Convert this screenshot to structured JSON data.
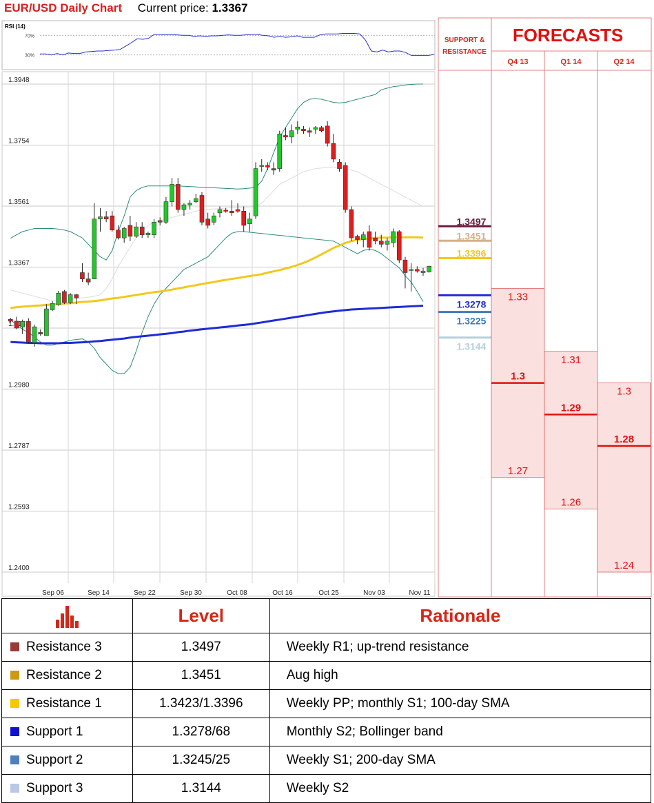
{
  "header": {
    "title": "EUR/USD Daily Chart",
    "price_label": "Current price:",
    "price_value": "1.3367"
  },
  "rsi": {
    "label": "RSI (14)",
    "levels": [
      "70%",
      "30%"
    ],
    "ylim": [
      0,
      100
    ],
    "values": [
      32,
      32,
      30,
      33,
      30,
      34,
      33,
      33,
      36,
      37,
      38,
      38,
      39,
      40,
      41,
      48,
      55,
      63,
      62,
      64,
      72,
      72,
      71,
      72,
      71,
      70,
      70,
      68,
      69,
      68,
      69,
      69,
      70,
      71,
      70,
      70,
      71,
      72,
      72,
      70,
      69,
      66,
      68,
      66,
      67,
      69,
      66,
      66,
      66,
      71,
      73,
      73,
      73,
      74,
      74,
      74,
      73,
      60,
      38,
      36,
      40,
      36,
      38,
      38,
      35,
      29,
      29,
      29,
      29,
      31
    ]
  },
  "colors": {
    "sma100": "#f2c81c",
    "sma200": "#1f2bd6",
    "candle_up": "#22c82a",
    "candle_down": "#de1e1e",
    "forecast_red": "#e01010",
    "forecast_fill": "#fbe0e0"
  },
  "chart_data": {
    "type": "candlestick",
    "title": "EUR/USD Daily Chart",
    "ylim": [
      1.24,
      1.3948
    ],
    "yticks": [
      "1.3948",
      "1.3754",
      "1.3561",
      "1.3367",
      "1.3174",
      "1.2980",
      "1.2787",
      "1.2593",
      "1.2400"
    ],
    "xticks": [
      "Sep 06",
      "Sep 14",
      "Sep 22",
      "Sep 30",
      "Oct 08",
      "Oct 16",
      "Oct 25",
      "Nov 03",
      "Nov 11"
    ],
    "candles": [
      [
        1.3202,
        1.3206,
        1.3191,
        1.3196
      ],
      [
        1.3196,
        1.321,
        1.317,
        1.3174
      ],
      [
        1.3178,
        1.3201,
        1.3155,
        1.3195
      ],
      [
        1.3195,
        1.3205,
        1.3125,
        1.313
      ],
      [
        1.3128,
        1.3185,
        1.3115,
        1.3178
      ],
      [
        1.316,
        1.317,
        1.315,
        1.3155
      ],
      [
        1.315,
        1.325,
        1.315,
        1.3235
      ],
      [
        1.3232,
        1.326,
        1.3228,
        1.3252
      ],
      [
        1.3248,
        1.3292,
        1.3245,
        1.3285
      ],
      [
        1.329,
        1.3295,
        1.325,
        1.3255
      ],
      [
        1.3255,
        1.3285,
        1.325,
        1.328
      ],
      [
        1.328,
        1.3282,
        1.325,
        1.327
      ],
      [
        1.335,
        1.338,
        1.332,
        1.333
      ],
      [
        1.333,
        1.335,
        1.331,
        1.332
      ],
      [
        1.333,
        1.357,
        1.333,
        1.352
      ],
      [
        1.352,
        1.3555,
        1.348,
        1.3527
      ],
      [
        1.3527,
        1.3545,
        1.351,
        1.352
      ],
      [
        1.353,
        1.3545,
        1.348,
        1.3485
      ],
      [
        1.3485,
        1.35,
        1.3455,
        1.346
      ],
      [
        1.346,
        1.3495,
        1.3445,
        1.349
      ],
      [
        1.35,
        1.353,
        1.345,
        1.3465
      ],
      [
        1.3465,
        1.351,
        1.346,
        1.3495
      ],
      [
        1.3495,
        1.351,
        1.346,
        1.347
      ],
      [
        1.347,
        1.348,
        1.346,
        1.3475
      ],
      [
        1.347,
        1.352,
        1.346,
        1.351
      ],
      [
        1.3515,
        1.3525,
        1.35,
        1.351
      ],
      [
        1.351,
        1.359,
        1.3505,
        1.3575
      ],
      [
        1.3575,
        1.365,
        1.356,
        1.363
      ],
      [
        1.363,
        1.365,
        1.354,
        1.355
      ],
      [
        1.355,
        1.357,
        1.353,
        1.3565
      ],
      [
        1.3565,
        1.358,
        1.355,
        1.357
      ],
      [
        1.3575,
        1.36,
        1.357,
        1.3585
      ],
      [
        1.3595,
        1.3605,
        1.35,
        1.351
      ],
      [
        1.352,
        1.354,
        1.349,
        1.35
      ],
      [
        1.351,
        1.354,
        1.35,
        1.353
      ],
      [
        1.354,
        1.356,
        1.3525,
        1.355
      ],
      [
        1.3548,
        1.3555,
        1.354,
        1.3545
      ],
      [
        1.3545,
        1.358,
        1.353,
        1.354
      ],
      [
        1.355,
        1.357,
        1.354,
        1.3545
      ],
      [
        1.3545,
        1.356,
        1.348,
        1.35
      ],
      [
        1.3505,
        1.354,
        1.348,
        1.352
      ],
      [
        1.353,
        1.37,
        1.352,
        1.368
      ],
      [
        1.369,
        1.371,
        1.367,
        1.369
      ],
      [
        1.369,
        1.37,
        1.3675,
        1.3685
      ],
      [
        1.368,
        1.37,
        1.366,
        1.3675
      ],
      [
        1.368,
        1.38,
        1.367,
        1.379
      ],
      [
        1.3785,
        1.381,
        1.377,
        1.378
      ],
      [
        1.378,
        1.382,
        1.376,
        1.38
      ],
      [
        1.3805,
        1.383,
        1.379,
        1.3812
      ],
      [
        1.3805,
        1.3815,
        1.379,
        1.38
      ],
      [
        1.38,
        1.381,
        1.378,
        1.3795
      ],
      [
        1.3805,
        1.3815,
        1.379,
        1.381
      ],
      [
        1.381,
        1.3815,
        1.3795,
        1.38
      ],
      [
        1.3815,
        1.383,
        1.375,
        1.376
      ],
      [
        1.376,
        1.379,
        1.37,
        1.371
      ],
      [
        1.37,
        1.371,
        1.367,
        1.368
      ],
      [
        1.369,
        1.37,
        1.354,
        1.355
      ],
      [
        1.355,
        1.356,
        1.345,
        1.346
      ],
      [
        1.3465,
        1.347,
        1.344,
        1.3455
      ],
      [
        1.3455,
        1.348,
        1.343,
        1.347
      ],
      [
        1.348,
        1.35,
        1.342,
        1.343
      ],
      [
        1.346,
        1.348,
        1.344,
        1.345
      ],
      [
        1.345,
        1.347,
        1.343,
        1.344
      ],
      [
        1.344,
        1.346,
        1.342,
        1.345
      ],
      [
        1.3445,
        1.349,
        1.343,
        1.348
      ],
      [
        1.348,
        1.3485,
        1.338,
        1.339
      ],
      [
        1.339,
        1.34,
        1.33,
        1.335
      ],
      [
        1.336,
        1.338,
        1.329,
        1.336
      ],
      [
        1.336,
        1.337,
        1.335,
        1.3355
      ],
      [
        1.335,
        1.3365,
        1.334,
        1.3355
      ],
      [
        1.3352,
        1.3372,
        1.335,
        1.337
      ]
    ],
    "series": [
      {
        "name": "SMA 100",
        "color": "#f2c81c",
        "values": [
          1.3238,
          1.324,
          1.3242,
          1.3243,
          1.3245,
          1.3246,
          1.3248,
          1.3249,
          1.325,
          1.3252,
          1.3253,
          1.3255,
          1.3257,
          1.3258,
          1.326,
          1.3262,
          1.3265,
          1.3268,
          1.327,
          1.3273,
          1.3276,
          1.3279,
          1.3282,
          1.3285,
          1.3288,
          1.329,
          1.3293,
          1.3296,
          1.33,
          1.3303,
          1.3307,
          1.331,
          1.3314,
          1.3317,
          1.332,
          1.3324,
          1.3327,
          1.333,
          1.3333,
          1.3336,
          1.3339,
          1.3342,
          1.3345,
          1.335,
          1.3354,
          1.3358,
          1.3363,
          1.3368,
          1.3374,
          1.3381,
          1.3389,
          1.3398,
          1.3408,
          1.3418,
          1.3428,
          1.3436,
          1.3444,
          1.345,
          1.3454,
          1.3457,
          1.3458,
          1.346,
          1.3461,
          1.3461,
          1.3462,
          1.3462,
          1.3462,
          1.3462,
          1.3462,
          1.3461
        ]
      },
      {
        "name": "SMA 200",
        "color": "#1f2bd6",
        "values": [
          1.313,
          1.3129,
          1.3128,
          1.3127,
          1.3127,
          1.3126,
          1.3126,
          1.3126,
          1.3126,
          1.3127,
          1.3127,
          1.3128,
          1.3129,
          1.313,
          1.3132,
          1.3133,
          1.3135,
          1.3137,
          1.3139,
          1.3141,
          1.3144,
          1.3146,
          1.3148,
          1.315,
          1.3152,
          1.3154,
          1.3156,
          1.3158,
          1.3161,
          1.3163,
          1.3166,
          1.3168,
          1.317,
          1.3172,
          1.3174,
          1.3176,
          1.3178,
          1.318,
          1.3182,
          1.3184,
          1.3186,
          1.3189,
          1.3192,
          1.3195,
          1.3198,
          1.3201,
          1.3204,
          1.3207,
          1.321,
          1.3213,
          1.3216,
          1.3219,
          1.3222,
          1.3225,
          1.3227,
          1.3229,
          1.3231,
          1.3233,
          1.3234,
          1.3235,
          1.3236,
          1.3237,
          1.3238,
          1.3239,
          1.324,
          1.3241,
          1.3242,
          1.3243,
          1.3244,
          1.3245
        ]
      },
      {
        "name": "Bollinger Upper",
        "color": "#2e8b7a",
        "values": [
          1.3459,
          1.347,
          1.348,
          1.3485,
          1.349,
          1.349,
          1.349,
          1.349,
          1.3488,
          1.3485,
          1.348,
          1.347,
          1.346,
          1.344,
          1.342,
          1.34,
          1.339,
          1.342,
          1.348,
          1.353,
          1.359,
          1.361,
          1.362,
          1.3625,
          1.3625,
          1.3625,
          1.3625,
          1.3625,
          1.3625,
          1.3624,
          1.3623,
          1.3622,
          1.362,
          1.362,
          1.3619,
          1.3618,
          1.3617,
          1.3616,
          1.3615,
          1.3616,
          1.3618,
          1.362,
          1.364,
          1.368,
          1.373,
          1.378,
          1.381,
          1.384,
          1.387,
          1.389,
          1.39,
          1.3902,
          1.39,
          1.3895,
          1.389,
          1.3888,
          1.389,
          1.3895,
          1.39,
          1.3905,
          1.391,
          1.3915,
          1.393,
          1.3935,
          1.394,
          1.3942,
          1.3945,
          1.3947,
          1.3948,
          1.3948
        ]
      },
      {
        "name": "Bollinger Lower",
        "color": "#2e8b7a",
        "values": [
          1.32,
          1.3185,
          1.317,
          1.316,
          1.3145,
          1.313,
          1.312,
          1.312,
          1.3125,
          1.313,
          1.3135,
          1.3138,
          1.314,
          1.313,
          1.311,
          1.308,
          1.306,
          1.304,
          1.303,
          1.303,
          1.305,
          1.31,
          1.316,
          1.321,
          1.325,
          1.328,
          1.33,
          1.332,
          1.334,
          1.336,
          1.337,
          1.338,
          1.339,
          1.34,
          1.342,
          1.344,
          1.346,
          1.3475,
          1.348,
          1.348,
          1.3478,
          1.3476,
          1.3474,
          1.3472,
          1.347,
          1.3468,
          1.3466,
          1.3464,
          1.3462,
          1.346,
          1.3458,
          1.3456,
          1.3454,
          1.3452,
          1.345,
          1.344,
          1.343,
          1.342,
          1.341,
          1.342,
          1.3425,
          1.342,
          1.341,
          1.3395,
          1.338,
          1.3365,
          1.334,
          1.332,
          1.329,
          1.3258
        ]
      },
      {
        "name": "Bollinger Middle",
        "color": "#dcdcdc",
        "values": [
          1.3295,
          1.329,
          1.3285,
          1.328,
          1.3275,
          1.327,
          1.3265,
          1.326,
          1.326,
          1.3262,
          1.3265,
          1.3268,
          1.327,
          1.3272,
          1.3275,
          1.328,
          1.33,
          1.333,
          1.337,
          1.34,
          1.343,
          1.346,
          1.348,
          1.35,
          1.351,
          1.3515,
          1.352,
          1.3525,
          1.353,
          1.3535,
          1.354,
          1.3545,
          1.3548,
          1.355,
          1.3552,
          1.3553,
          1.3555,
          1.3556,
          1.3556,
          1.3557,
          1.3558,
          1.356,
          1.357,
          1.359,
          1.361,
          1.363,
          1.364,
          1.365,
          1.366,
          1.367,
          1.3675,
          1.368,
          1.3682,
          1.3684,
          1.3685,
          1.3683,
          1.368,
          1.3675,
          1.367,
          1.366,
          1.365,
          1.364,
          1.363,
          1.362,
          1.361,
          1.36,
          1.359,
          1.358,
          1.357,
          1.356
        ]
      }
    ],
    "support_resistance": {
      "header": [
        "SUPPORT &",
        "RESISTANCE"
      ],
      "levels": [
        {
          "value": 1.3497,
          "label": "1.3497",
          "color": "#6b1a3a"
        },
        {
          "value": 1.3451,
          "label": "1.3451",
          "color": "#d4b08a"
        },
        {
          "value": 1.3396,
          "label": "1.3396",
          "color": "#f2c81c"
        },
        {
          "value": 1.3278,
          "label": "1.3278",
          "color": "#1f2bd6"
        },
        {
          "value": 1.3225,
          "label": "1.3225",
          "color": "#3e7ab8"
        },
        {
          "value": 1.3144,
          "label": "1.3144",
          "color": "#b4d0d8"
        }
      ]
    },
    "forecasts": {
      "title": "FORECASTS",
      "columns": [
        {
          "label": "Q4 13",
          "high": 1.33,
          "high_label": "1.33",
          "mid": 1.3,
          "mid_label": "1.3",
          "low": 1.27,
          "low_label": "1.27"
        },
        {
          "label": "Q1 14",
          "high": 1.31,
          "high_label": "1.31",
          "mid": 1.29,
          "mid_label": "1.29",
          "low": 1.26,
          "low_label": "1.26"
        },
        {
          "label": "Q2 14",
          "high": 1.3,
          "high_label": "1.3",
          "mid": 1.28,
          "mid_label": "1.28",
          "low": 1.24,
          "low_label": "1.24"
        }
      ]
    }
  },
  "table": {
    "headers": [
      "Level",
      "Rationale"
    ],
    "rows": [
      {
        "name": "Resistance 3",
        "color": "#993a3a",
        "level": "1.3497",
        "rationale": "Weekly R1; up-trend resistance"
      },
      {
        "name": "Resistance 2",
        "color": "#cc9a10",
        "level": "1.3451",
        "rationale": "Aug high"
      },
      {
        "name": "Resistance 1",
        "color": "#f6c800",
        "level": "1.3423/1.3396",
        "rationale": "Weekly PP; monthly S1; 100-day SMA"
      },
      {
        "name": "Support 1",
        "color": "#1010d0",
        "level": "1.3278/68",
        "rationale": "Monthly S2; Bollinger band"
      },
      {
        "name": "Support 2",
        "color": "#4f7fbf",
        "level": "1.3245/25",
        "rationale": "Weekly S1; 200-day SMA"
      },
      {
        "name": "Support 3",
        "color": "#b8c8e6",
        "level": "1.3144",
        "rationale": "Weekly S2"
      }
    ]
  }
}
